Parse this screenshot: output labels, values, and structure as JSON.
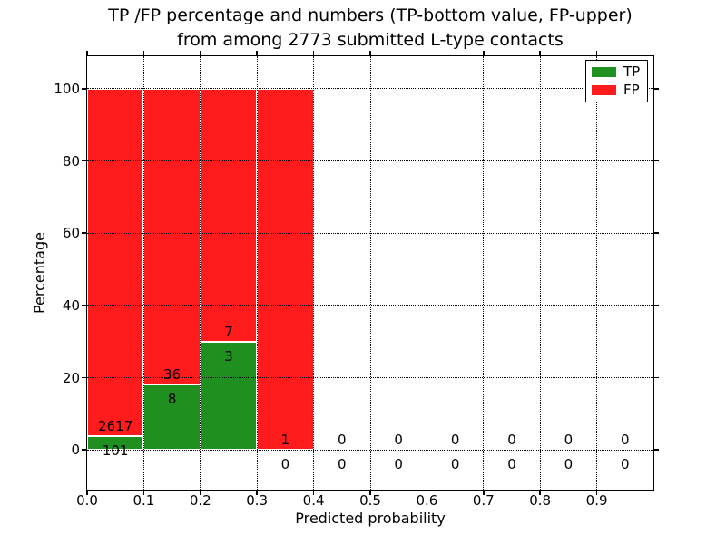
{
  "chart_data": {
    "type": "bar",
    "subtype": "stacked-percentage-histogram",
    "title_lines": [
      "TP /FP percentage and numbers (TP-bottom value, FP-upper)",
      "from among 2773 submitted L-type contacts"
    ],
    "xlabel": "Predicted probability",
    "ylabel": "Percentage",
    "xlim": [
      0.0,
      1.0
    ],
    "ylim": [
      -11,
      109
    ],
    "x_tick_values": [
      0.0,
      0.1,
      0.2,
      0.3,
      0.4,
      0.5,
      0.6,
      0.7,
      0.8,
      0.9
    ],
    "x_tick_labels": [
      "0.0",
      "0.1",
      "0.2",
      "0.3",
      "0.4",
      "0.5",
      "0.6",
      "0.7",
      "0.8",
      "0.9"
    ],
    "y_tick_values": [
      0,
      20,
      40,
      60,
      80,
      100
    ],
    "y_tick_labels": [
      "0",
      "20",
      "40",
      "60",
      "80",
      "100"
    ],
    "grid": true,
    "legend_position": "upper right",
    "legend": [
      {
        "label": "TP",
        "color": "#1f8f1f"
      },
      {
        "label": "FP",
        "color": "#fe1b1b"
      }
    ],
    "colors": {
      "tp": "#1f8f1f",
      "fp": "#fe1b1b"
    },
    "bins": [
      {
        "range": [
          0.0,
          0.1
        ],
        "tp": 101,
        "fp": 2617
      },
      {
        "range": [
          0.1,
          0.2
        ],
        "tp": 8,
        "fp": 36
      },
      {
        "range": [
          0.2,
          0.3
        ],
        "tp": 3,
        "fp": 7
      },
      {
        "range": [
          0.3,
          0.4
        ],
        "tp": 0,
        "fp": 1
      },
      {
        "range": [
          0.4,
          0.5
        ],
        "tp": 0,
        "fp": 0
      },
      {
        "range": [
          0.5,
          0.6
        ],
        "tp": 0,
        "fp": 0
      },
      {
        "range": [
          0.6,
          0.7
        ],
        "tp": 0,
        "fp": 0
      },
      {
        "range": [
          0.7,
          0.8
        ],
        "tp": 0,
        "fp": 0
      },
      {
        "range": [
          0.8,
          0.9
        ],
        "tp": 0,
        "fp": 0
      },
      {
        "range": [
          0.9,
          1.0
        ],
        "tp": 0,
        "fp": 0
      }
    ]
  }
}
